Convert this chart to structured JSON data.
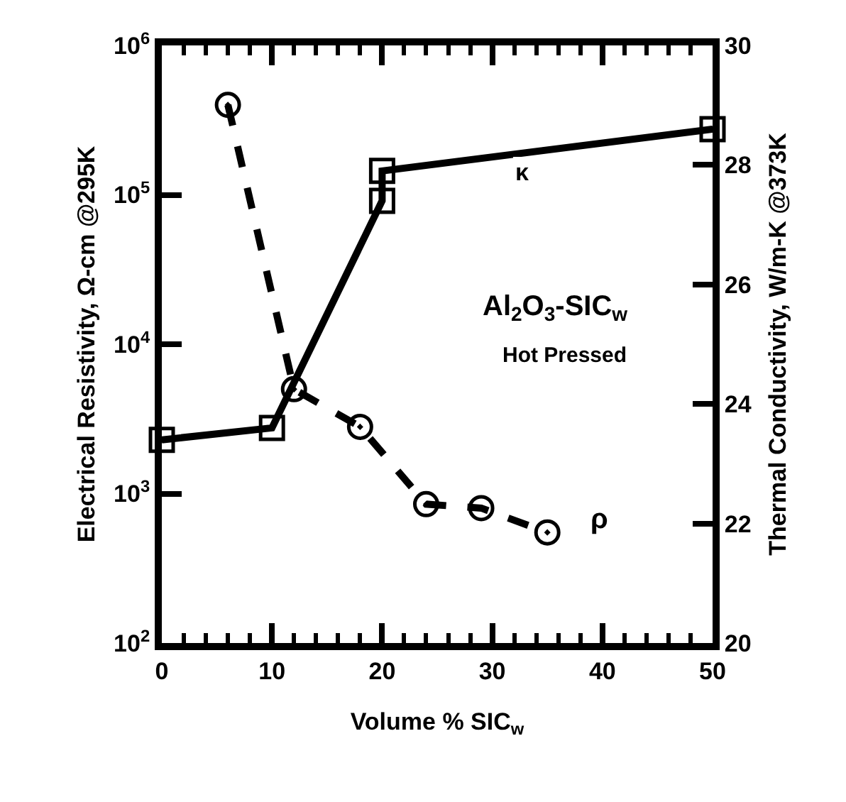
{
  "chart_data": {
    "type": "line",
    "xlabel": "Volume % SIC$_{w}$",
    "ylabel": "Electrical Resistivity, Ω-cm @295K",
    "y2label": "Thermal Conductivity, W/m-K @373K",
    "series": [
      {
        "x": [
          6,
          12,
          18,
          24,
          29,
          35
        ],
        "values": [
          400000,
          5000,
          2800,
          850,
          800,
          550
        ],
        "color": "#000000",
        "marker": "circle",
        "line_style": "dashed"
      },
      {
        "x": [
          0,
          10,
          20,
          20,
          50
        ],
        "values": [
          23.4,
          23.6,
          27.4,
          27.9,
          28.6
        ],
        "color": "#000000",
        "marker": "square",
        "line_style": "solid",
        "axis": "y2"
      }
    ],
    "xlim": [
      0,
      50
    ],
    "xticks": [
      0,
      10,
      20,
      30,
      40,
      50
    ],
    "log": true,
    "ylim": [
      100,
      1000000
    ],
    "yticks": [
      {
        "value": 100,
        "label": "10$^{2}$"
      },
      {
        "value": 1000,
        "label": "10$^{3}$"
      },
      {
        "value": 10000,
        "label": "10$^{4}$"
      },
      {
        "value": 100000,
        "label": "10$^{5}$"
      },
      {
        "value": 1000000,
        "label": "10$^{6}$"
      }
    ],
    "y2lim": [
      20,
      30
    ],
    "y2ticks": [
      20,
      22,
      24,
      26,
      28,
      30
    ],
    "grid": false,
    "annotations": [
      "Al$_{2}$O$_{3}$-SIC$_{w}$",
      "Hot Pressed",
      "κ",
      "ρ"
    ]
  }
}
